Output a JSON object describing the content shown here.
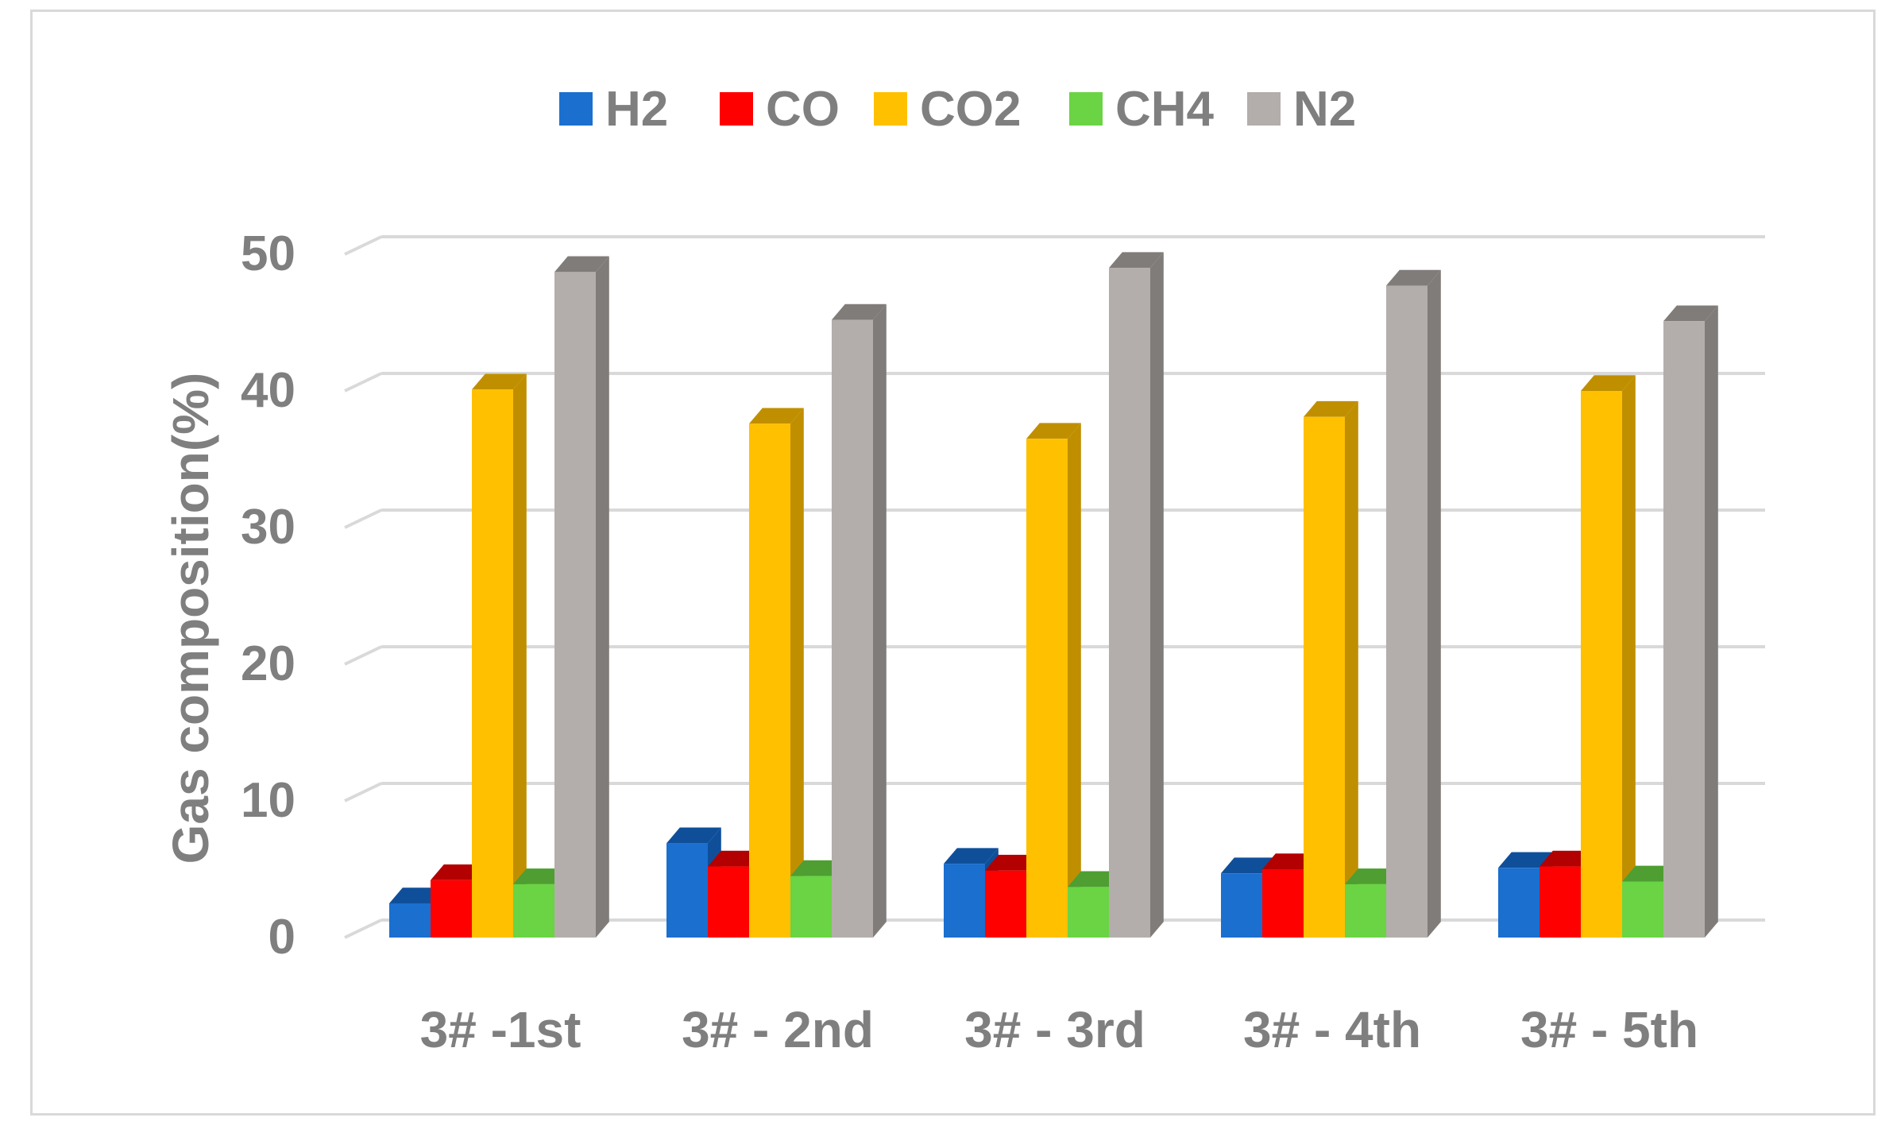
{
  "chart_data": {
    "type": "bar",
    "title": "",
    "xlabel": "",
    "ylabel": "Gas composition(%)",
    "ylim": [
      0,
      50
    ],
    "yticks": [
      0,
      10,
      20,
      30,
      40,
      50
    ],
    "grid": true,
    "legend_position": "top",
    "categories": [
      "3# -1st",
      "3# - 2nd",
      "3# - 3rd",
      "3# - 4th",
      "3# - 5th"
    ],
    "series": [
      {
        "name": "H2",
        "color": "#1a6fcf",
        "side": "#0f4f9a",
        "values": [
          2.5,
          6.9,
          5.4,
          4.7,
          5.1
        ]
      },
      {
        "name": "CO",
        "color": "#ff0000",
        "side": "#b30000",
        "values": [
          4.2,
          5.2,
          4.9,
          5.0,
          5.2
        ]
      },
      {
        "name": "CO2",
        "color": "#ffc000",
        "side": "#c08f00",
        "values": [
          40.1,
          37.6,
          36.5,
          38.1,
          40.0
        ]
      },
      {
        "name": "CH4",
        "color": "#6ad444",
        "side": "#4e9e32",
        "values": [
          3.9,
          4.5,
          3.7,
          3.9,
          4.1
        ]
      },
      {
        "name": "N2",
        "color": "#b3aeab",
        "side": "#807c7a",
        "values": [
          48.7,
          45.2,
          49.0,
          47.7,
          45.1
        ]
      }
    ]
  }
}
